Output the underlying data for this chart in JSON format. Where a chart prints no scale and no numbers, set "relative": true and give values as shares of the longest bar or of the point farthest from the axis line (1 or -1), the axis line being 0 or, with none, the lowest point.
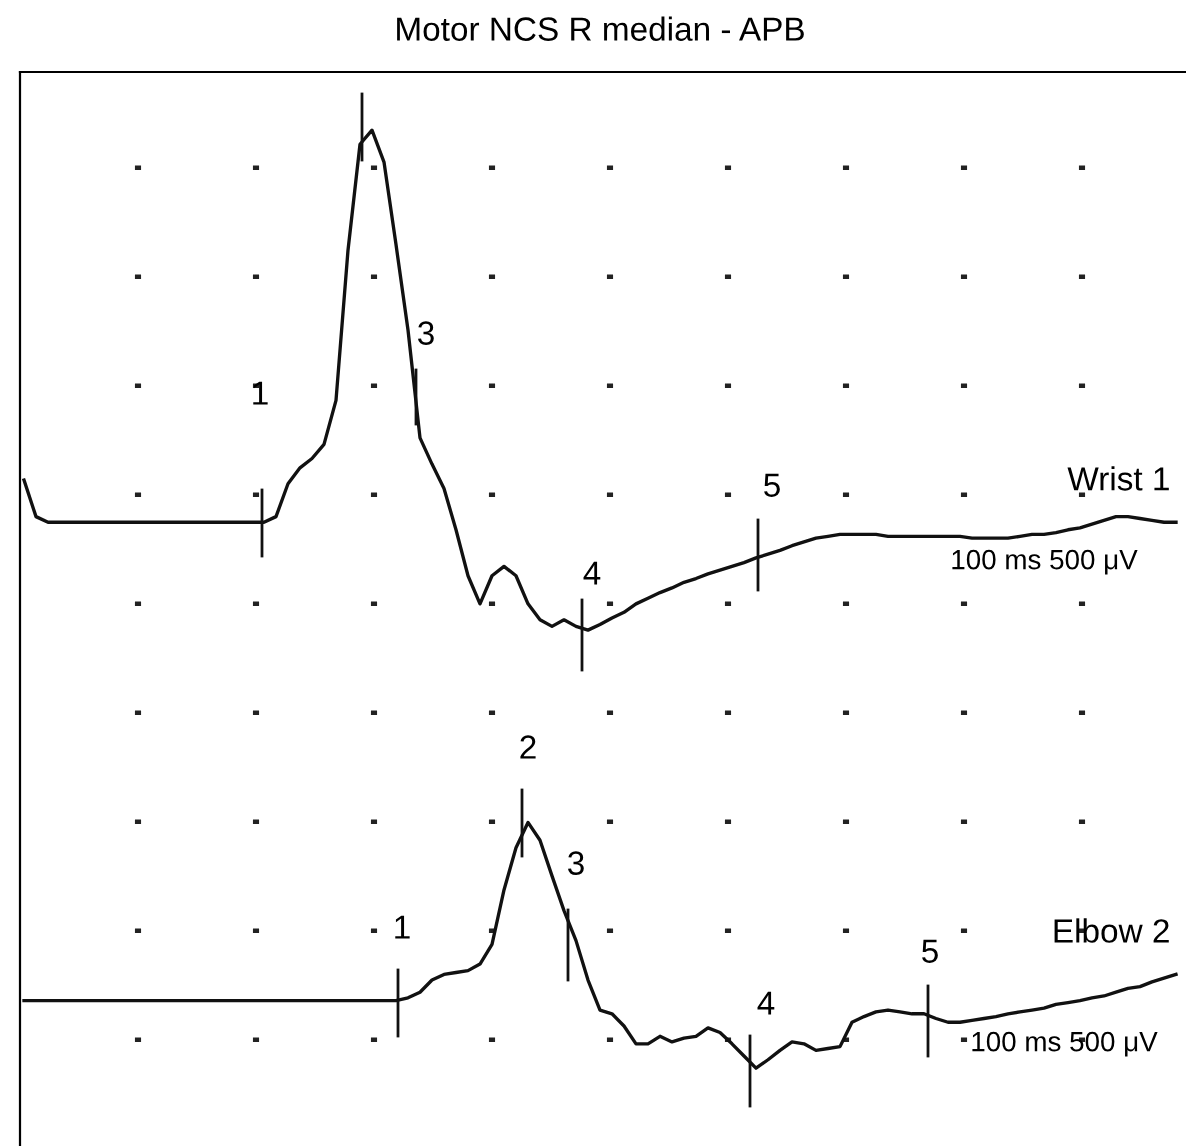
{
  "chart_data": {
    "type": "line",
    "title": "Motor NCS R median - APB",
    "relative": true,
    "grid": true,
    "marker": "none",
    "line_style": "solid",
    "categories": [
      null,
      null,
      null,
      null,
      null,
      null,
      null,
      null,
      null,
      null,
      null,
      null,
      null,
      null,
      null,
      null,
      null,
      null,
      null,
      null,
      null,
      null,
      null,
      null,
      null,
      null,
      null,
      null,
      null,
      null,
      null,
      null,
      null,
      null,
      null,
      null,
      null,
      null,
      null,
      null,
      null,
      null,
      null,
      null,
      null,
      null,
      null,
      null,
      null,
      null,
      null,
      null,
      null,
      null,
      null,
      null,
      null,
      null,
      null,
      null,
      null,
      null,
      null,
      null,
      null,
      null,
      null,
      null,
      null,
      null,
      null,
      null,
      null,
      null,
      null,
      null,
      null,
      null,
      null,
      null,
      null,
      null,
      null,
      null,
      null,
      null,
      null,
      null,
      null,
      null,
      null,
      null,
      null,
      null,
      null,
      null,
      null
    ],
    "series": [
      {
        "name": "Wrist 1",
        "color": "#111111",
        "values": [
          0.627,
          0.588,
          0.582,
          0.582,
          0.582,
          0.582,
          0.582,
          0.582,
          0.582,
          0.582,
          0.582,
          0.582,
          0.582,
          0.582,
          0.582,
          0.582,
          0.582,
          0.582,
          0.582,
          0.582,
          0.582,
          0.588,
          0.623,
          0.64,
          0.65,
          0.665,
          0.712,
          0.872,
          0.985,
          1.0,
          0.966,
          0.878,
          0.787,
          0.672,
          0.644,
          0.618,
          0.574,
          0.525,
          0.495,
          0.525,
          0.535,
          0.525,
          0.495,
          0.478,
          0.471,
          0.478,
          0.471,
          0.467,
          0.473,
          0.48,
          0.486,
          0.495,
          0.501,
          0.507,
          0.512,
          0.518,
          0.522,
          0.527,
          0.531,
          0.535,
          0.539,
          0.544,
          0.548,
          0.552,
          0.557,
          0.561,
          0.565,
          0.567,
          0.569,
          0.569,
          0.569,
          0.569,
          0.567,
          0.567,
          0.567,
          0.567,
          0.567,
          0.567,
          0.567,
          0.565,
          0.565,
          0.565,
          0.565,
          0.567,
          0.569,
          0.569,
          0.571,
          0.574,
          0.576,
          0.58,
          0.584,
          0.588,
          0.588,
          0.586,
          0.584,
          0.582,
          0.582
        ]
      },
      {
        "name": "Elbow 2",
        "color": "#111111",
        "values": [
          0.072,
          0.072,
          0.072,
          0.072,
          0.072,
          0.072,
          0.072,
          0.072,
          0.072,
          0.072,
          0.072,
          0.072,
          0.072,
          0.072,
          0.072,
          0.072,
          0.072,
          0.072,
          0.072,
          0.072,
          0.072,
          0.072,
          0.072,
          0.072,
          0.072,
          0.072,
          0.072,
          0.072,
          0.072,
          0.072,
          0.072,
          0.072,
          0.075,
          0.081,
          0.094,
          0.1,
          0.102,
          0.104,
          0.111,
          0.132,
          0.19,
          0.235,
          0.262,
          0.243,
          0.205,
          0.168,
          0.136,
          0.094,
          0.062,
          0.058,
          0.045,
          0.026,
          0.026,
          0.034,
          0.028,
          0.032,
          0.034,
          0.043,
          0.038,
          0.026,
          0.013,
          0.0,
          0.009,
          0.019,
          0.028,
          0.026,
          0.019,
          0.021,
          0.023,
          0.049,
          0.055,
          0.06,
          0.062,
          0.06,
          0.058,
          0.058,
          0.053,
          0.049,
          0.049,
          0.051,
          0.053,
          0.055,
          0.058,
          0.06,
          0.062,
          0.064,
          0.068,
          0.07,
          0.072,
          0.075,
          0.077,
          0.081,
          0.085,
          0.087,
          0.092,
          0.096,
          0.1
        ]
      }
    ],
    "annotations": [
      "1",
      "3",
      "4",
      "5",
      "100 ms 500 μV",
      "2",
      "1",
      "3",
      "4",
      "5",
      "100 ms 500 μV"
    ]
  }
}
